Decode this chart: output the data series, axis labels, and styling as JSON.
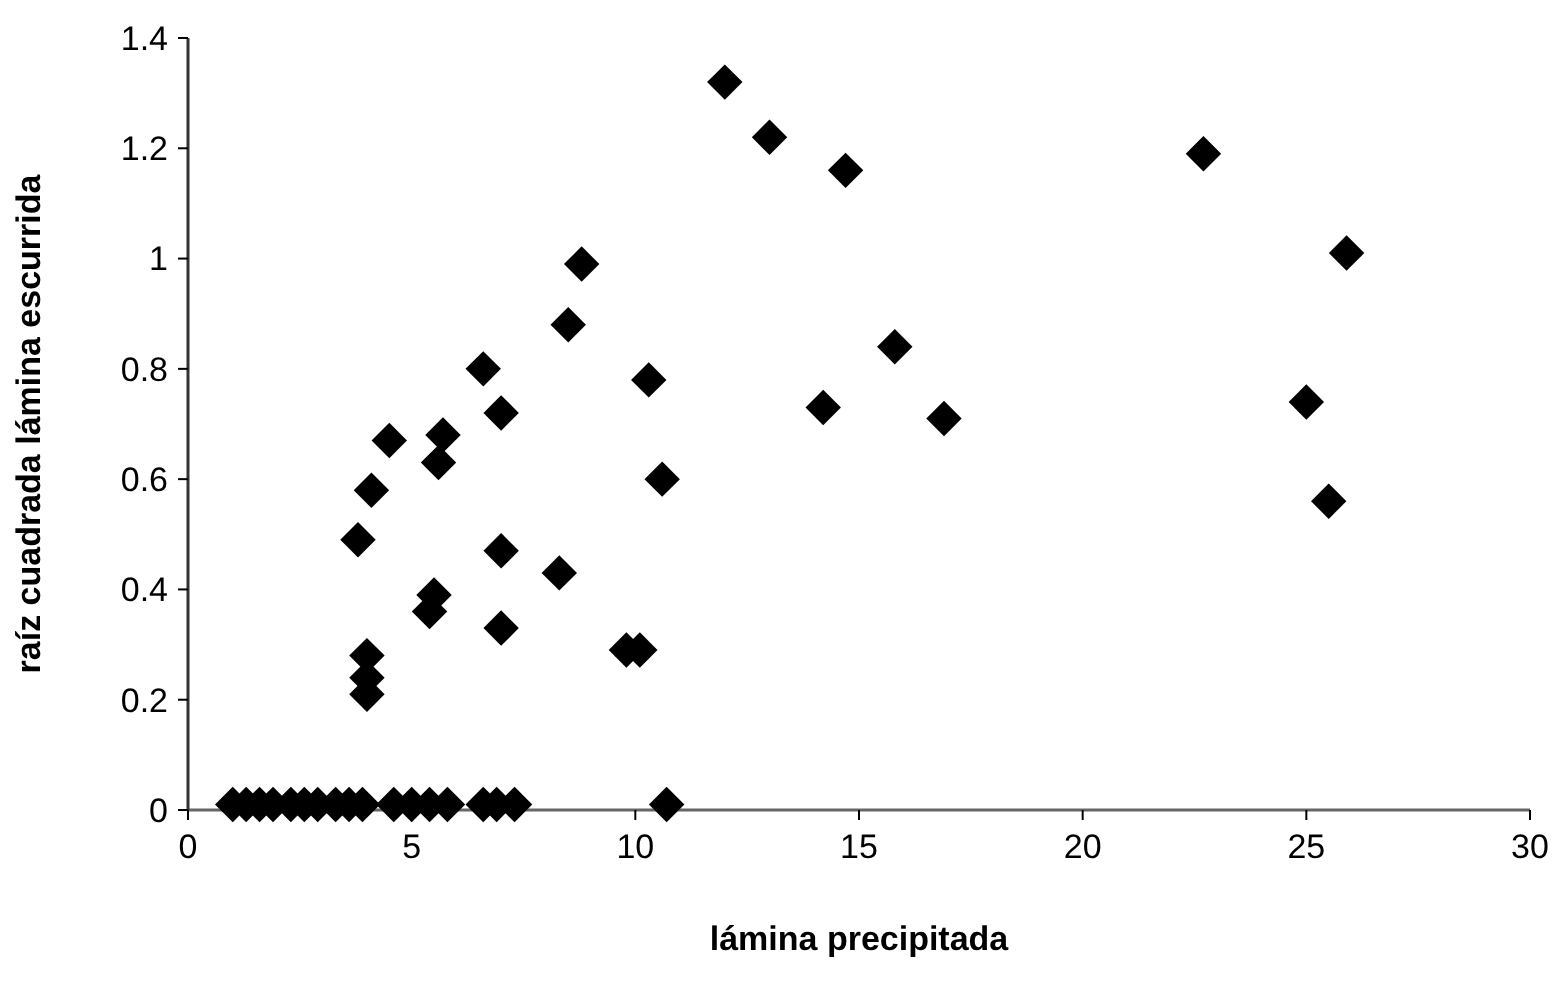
{
  "chart_data": {
    "type": "scatter",
    "xlabel": "lámina precipitada",
    "ylabel": "raíz cuadrada lámina escurrida",
    "xlim": [
      0,
      30
    ],
    "xticks": [
      0,
      5,
      10,
      15,
      20,
      25,
      30
    ],
    "ylim": [
      0,
      1.4
    ],
    "yticks": [
      0,
      {
        "value": 0.2,
        "label": "0.2"
      },
      {
        "value": 0.4,
        "label": "0.4"
      },
      {
        "value": 0.6,
        "label": "0.6"
      },
      {
        "value": 0.8,
        "label": "0.8"
      },
      1,
      {
        "value": 1.2,
        "label": "1.2"
      },
      {
        "value": 1.4,
        "label": "1.4"
      }
    ],
    "marker": "diamond",
    "grid": false,
    "series": [
      {
        "color": "#000000",
        "x": [
          12,
          13,
          14.7,
          8.8,
          8.5,
          6.6,
          7,
          10.3,
          10.6,
          4.5,
          5.7,
          5.6,
          4.1,
          3.8,
          7,
          8.3,
          5.5,
          5.4,
          7,
          9.8,
          10.1,
          4,
          4,
          4,
          15.8,
          14.2,
          16.9,
          22.7,
          25.9,
          25,
          25.5,
          1,
          1.3,
          1.6,
          1.9,
          2.3,
          2.6,
          2.9,
          3.3,
          3.6,
          3.9,
          4.6,
          5,
          5.4,
          5.8,
          6.6,
          6.9,
          7.3,
          10.7
        ],
        "values": [
          1.32,
          1.22,
          1.16,
          0.99,
          0.88,
          0.8,
          0.72,
          0.78,
          0.6,
          0.67,
          0.68,
          0.63,
          0.58,
          0.49,
          0.47,
          0.43,
          0.39,
          0.36,
          0.33,
          0.29,
          0.29,
          0.28,
          0.24,
          0.21,
          0.84,
          0.73,
          0.71,
          1.19,
          1.01,
          0.74,
          0.56,
          0.01,
          0.01,
          0.01,
          0.01,
          0.01,
          0.01,
          0.01,
          0.01,
          0.01,
          0.01,
          0.01,
          0.01,
          0.01,
          0.01,
          0.01,
          0.01,
          0.01,
          0.01
        ]
      }
    ]
  }
}
